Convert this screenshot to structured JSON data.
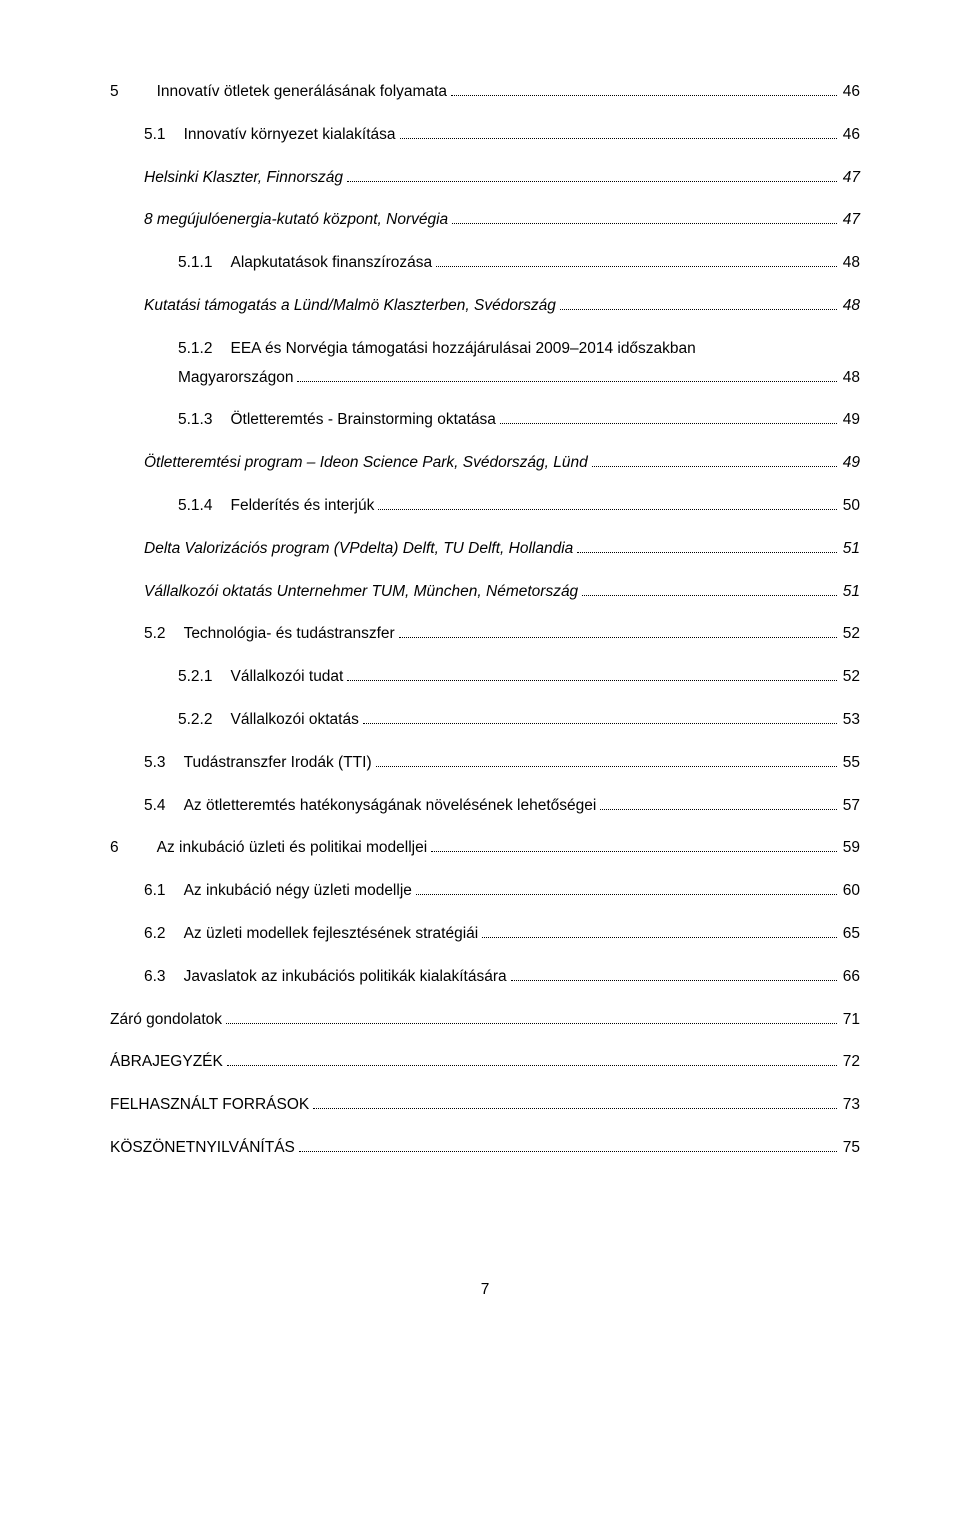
{
  "toc": [
    {
      "level": 0,
      "num": "5",
      "label": "Innovatív ötletek generálásának folyamata",
      "page": "46",
      "italic": false
    },
    {
      "level": 1,
      "num": "5.1",
      "label": "Innovatív környezet kialakítása",
      "page": "46",
      "italic": false
    },
    {
      "level": 1,
      "num": "",
      "label": "Helsinki Klaszter, Finnország",
      "page": "47",
      "italic": true
    },
    {
      "level": 1,
      "num": "",
      "label": "8 megújulóenergia-kutató központ, Norvégia",
      "page": "47",
      "italic": true
    },
    {
      "level": 2,
      "num": "5.1.1",
      "label": "Alapkutatások finanszírozása",
      "page": "48",
      "italic": false
    },
    {
      "level": 1,
      "num": "",
      "label": "Kutatási támogatás a Lünd/Malmö Klaszterben, Svédország",
      "page": "48",
      "italic": true
    },
    {
      "level": 2,
      "num": "5.1.2",
      "label": "EEA és Norvégia támogatási hozzájárulásai 2009–2014 időszakban",
      "label2": "Magyarországon",
      "page": "48",
      "italic": false,
      "wrap": true
    },
    {
      "level": 2,
      "num": "5.1.3",
      "label": "Ötletteremtés - Brainstorming oktatása",
      "page": "49",
      "italic": false
    },
    {
      "level": 1,
      "num": "",
      "label": "Ötletteremtési program – Ideon Science Park, Svédország, Lünd",
      "page": "49",
      "italic": true
    },
    {
      "level": 2,
      "num": "5.1.4",
      "label": "Felderítés és interjúk",
      "page": "50",
      "italic": false
    },
    {
      "level": 1,
      "num": "",
      "label": "Delta Valorizációs program (VPdelta) Delft, TU Delft, Hollandia",
      "page": "51",
      "italic": true
    },
    {
      "level": 1,
      "num": "",
      "label": "Vállalkozói oktatás Unternehmer TUM, München, Németország",
      "page": "51",
      "italic": true
    },
    {
      "level": 1,
      "num": "5.2",
      "label": "Technológia- és tudástranszfer",
      "page": "52",
      "italic": false
    },
    {
      "level": 2,
      "num": "5.2.1",
      "label": "Vállalkozói tudat",
      "page": "52",
      "italic": false
    },
    {
      "level": 2,
      "num": "5.2.2",
      "label": "Vállalkozói oktatás",
      "page": "53",
      "italic": false
    },
    {
      "level": 1,
      "num": "5.3",
      "label": "Tudástranszfer Irodák (TTI)",
      "page": "55",
      "italic": false
    },
    {
      "level": 1,
      "num": "5.4",
      "label": "Az ötletteremtés hatékonyságának növelésének lehetőségei",
      "page": "57",
      "italic": false
    },
    {
      "level": 0,
      "num": "6",
      "label": "Az inkubáció üzleti és politikai modelljei",
      "page": "59",
      "italic": false
    },
    {
      "level": 1,
      "num": "6.1",
      "label": "Az inkubáció négy üzleti modellje",
      "page": "60",
      "italic": false
    },
    {
      "level": 1,
      "num": "6.2",
      "label": "Az üzleti modellek fejlesztésének stratégiái",
      "page": "65",
      "italic": false
    },
    {
      "level": 1,
      "num": "6.3",
      "label": "Javaslatok az inkubációs politikák kialakítására",
      "page": "66",
      "italic": false
    },
    {
      "level": 0,
      "num": "",
      "label": "Záró gondolatok",
      "page": "71",
      "italic": false
    },
    {
      "level": 0,
      "num": "",
      "label": "ÁBRAJEGYZÉK",
      "page": "72",
      "italic": false
    },
    {
      "level": 0,
      "num": "",
      "label": "FELHASZNÁLT FORRÁSOK",
      "page": "73",
      "italic": false
    },
    {
      "level": 0,
      "num": "",
      "label": "KÖSZÖNETNYILVÁNÍTÁS",
      "page": "75",
      "italic": false
    }
  ],
  "footer": {
    "page_number": "7"
  }
}
